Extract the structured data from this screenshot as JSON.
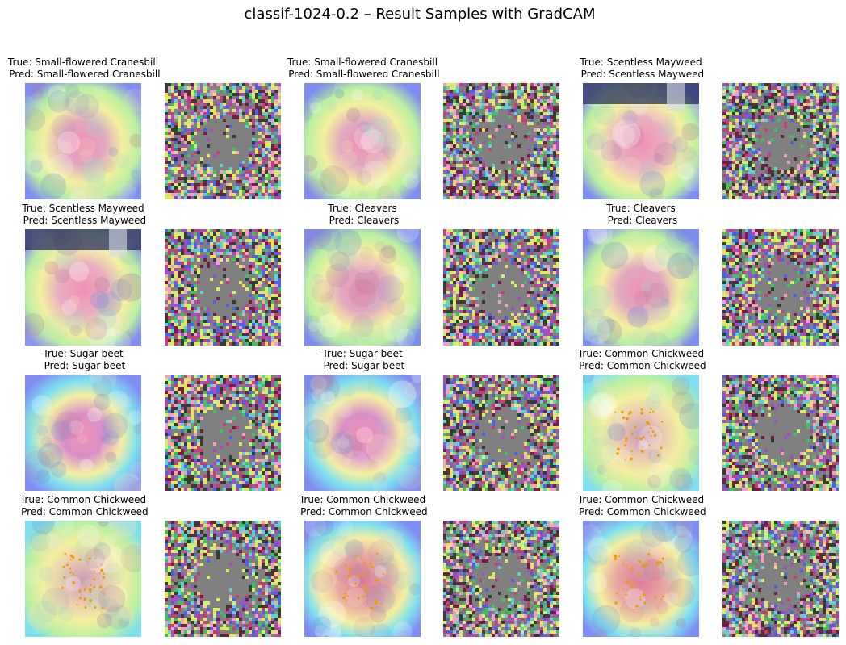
{
  "figure": {
    "title": "classif-1024-0.2 – Result Samples with GradCAM"
  },
  "samples": [
    {
      "true_label": "Small-flowered Cranesbill",
      "pred_label": "Small-flowered Cranesbill",
      "heat_style": "warm-center",
      "has_dots": false,
      "has_banner": false
    },
    {
      "true_label": "Small-flowered Cranesbill",
      "pred_label": "Small-flowered Cranesbill",
      "heat_style": "warm-center",
      "has_dots": false,
      "has_banner": false
    },
    {
      "true_label": "Scentless Mayweed",
      "pred_label": "Scentless Mayweed",
      "heat_style": "banner",
      "has_dots": false,
      "has_banner": true
    },
    {
      "true_label": "Scentless Mayweed",
      "pred_label": "Scentless Mayweed",
      "heat_style": "banner",
      "has_dots": false,
      "has_banner": true
    },
    {
      "true_label": "Cleavers",
      "pred_label": "Cleavers",
      "heat_style": "warm-center",
      "has_dots": false,
      "has_banner": false
    },
    {
      "true_label": "Cleavers",
      "pred_label": "Cleavers",
      "heat_style": "warm-center",
      "has_dots": false,
      "has_banner": false
    },
    {
      "true_label": "Sugar beet",
      "pred_label": "Sugar beet",
      "heat_style": "cool-edges",
      "has_dots": false,
      "has_banner": false
    },
    {
      "true_label": "Sugar beet",
      "pred_label": "Sugar beet",
      "heat_style": "cool-edges",
      "has_dots": false,
      "has_banner": false
    },
    {
      "true_label": "Common Chickweed",
      "pred_label": "Common Chickweed",
      "heat_style": "soft-yellow",
      "has_dots": true,
      "has_banner": false
    },
    {
      "true_label": "Common Chickweed",
      "pred_label": "Common Chickweed",
      "heat_style": "soft-yellow",
      "has_dots": true,
      "has_banner": false
    },
    {
      "true_label": "Common Chickweed",
      "pred_label": "Common Chickweed",
      "heat_style": "warm-dots",
      "has_dots": true,
      "has_banner": false
    },
    {
      "true_label": "Common Chickweed",
      "pred_label": "Common Chickweed",
      "heat_style": "warm-dots",
      "has_dots": true,
      "has_banner": false
    }
  ],
  "palette": {
    "heat_blue": "#7f8cf2",
    "heat_cyan": "#7fe0f0",
    "heat_green": "#b8f0a0",
    "heat_yellow": "#f4f0a0",
    "heat_pink": "#f08fb4",
    "banner_navy": "#2a2f5a",
    "noise_gray": "#808080",
    "dot_orange": "#e8a000"
  }
}
